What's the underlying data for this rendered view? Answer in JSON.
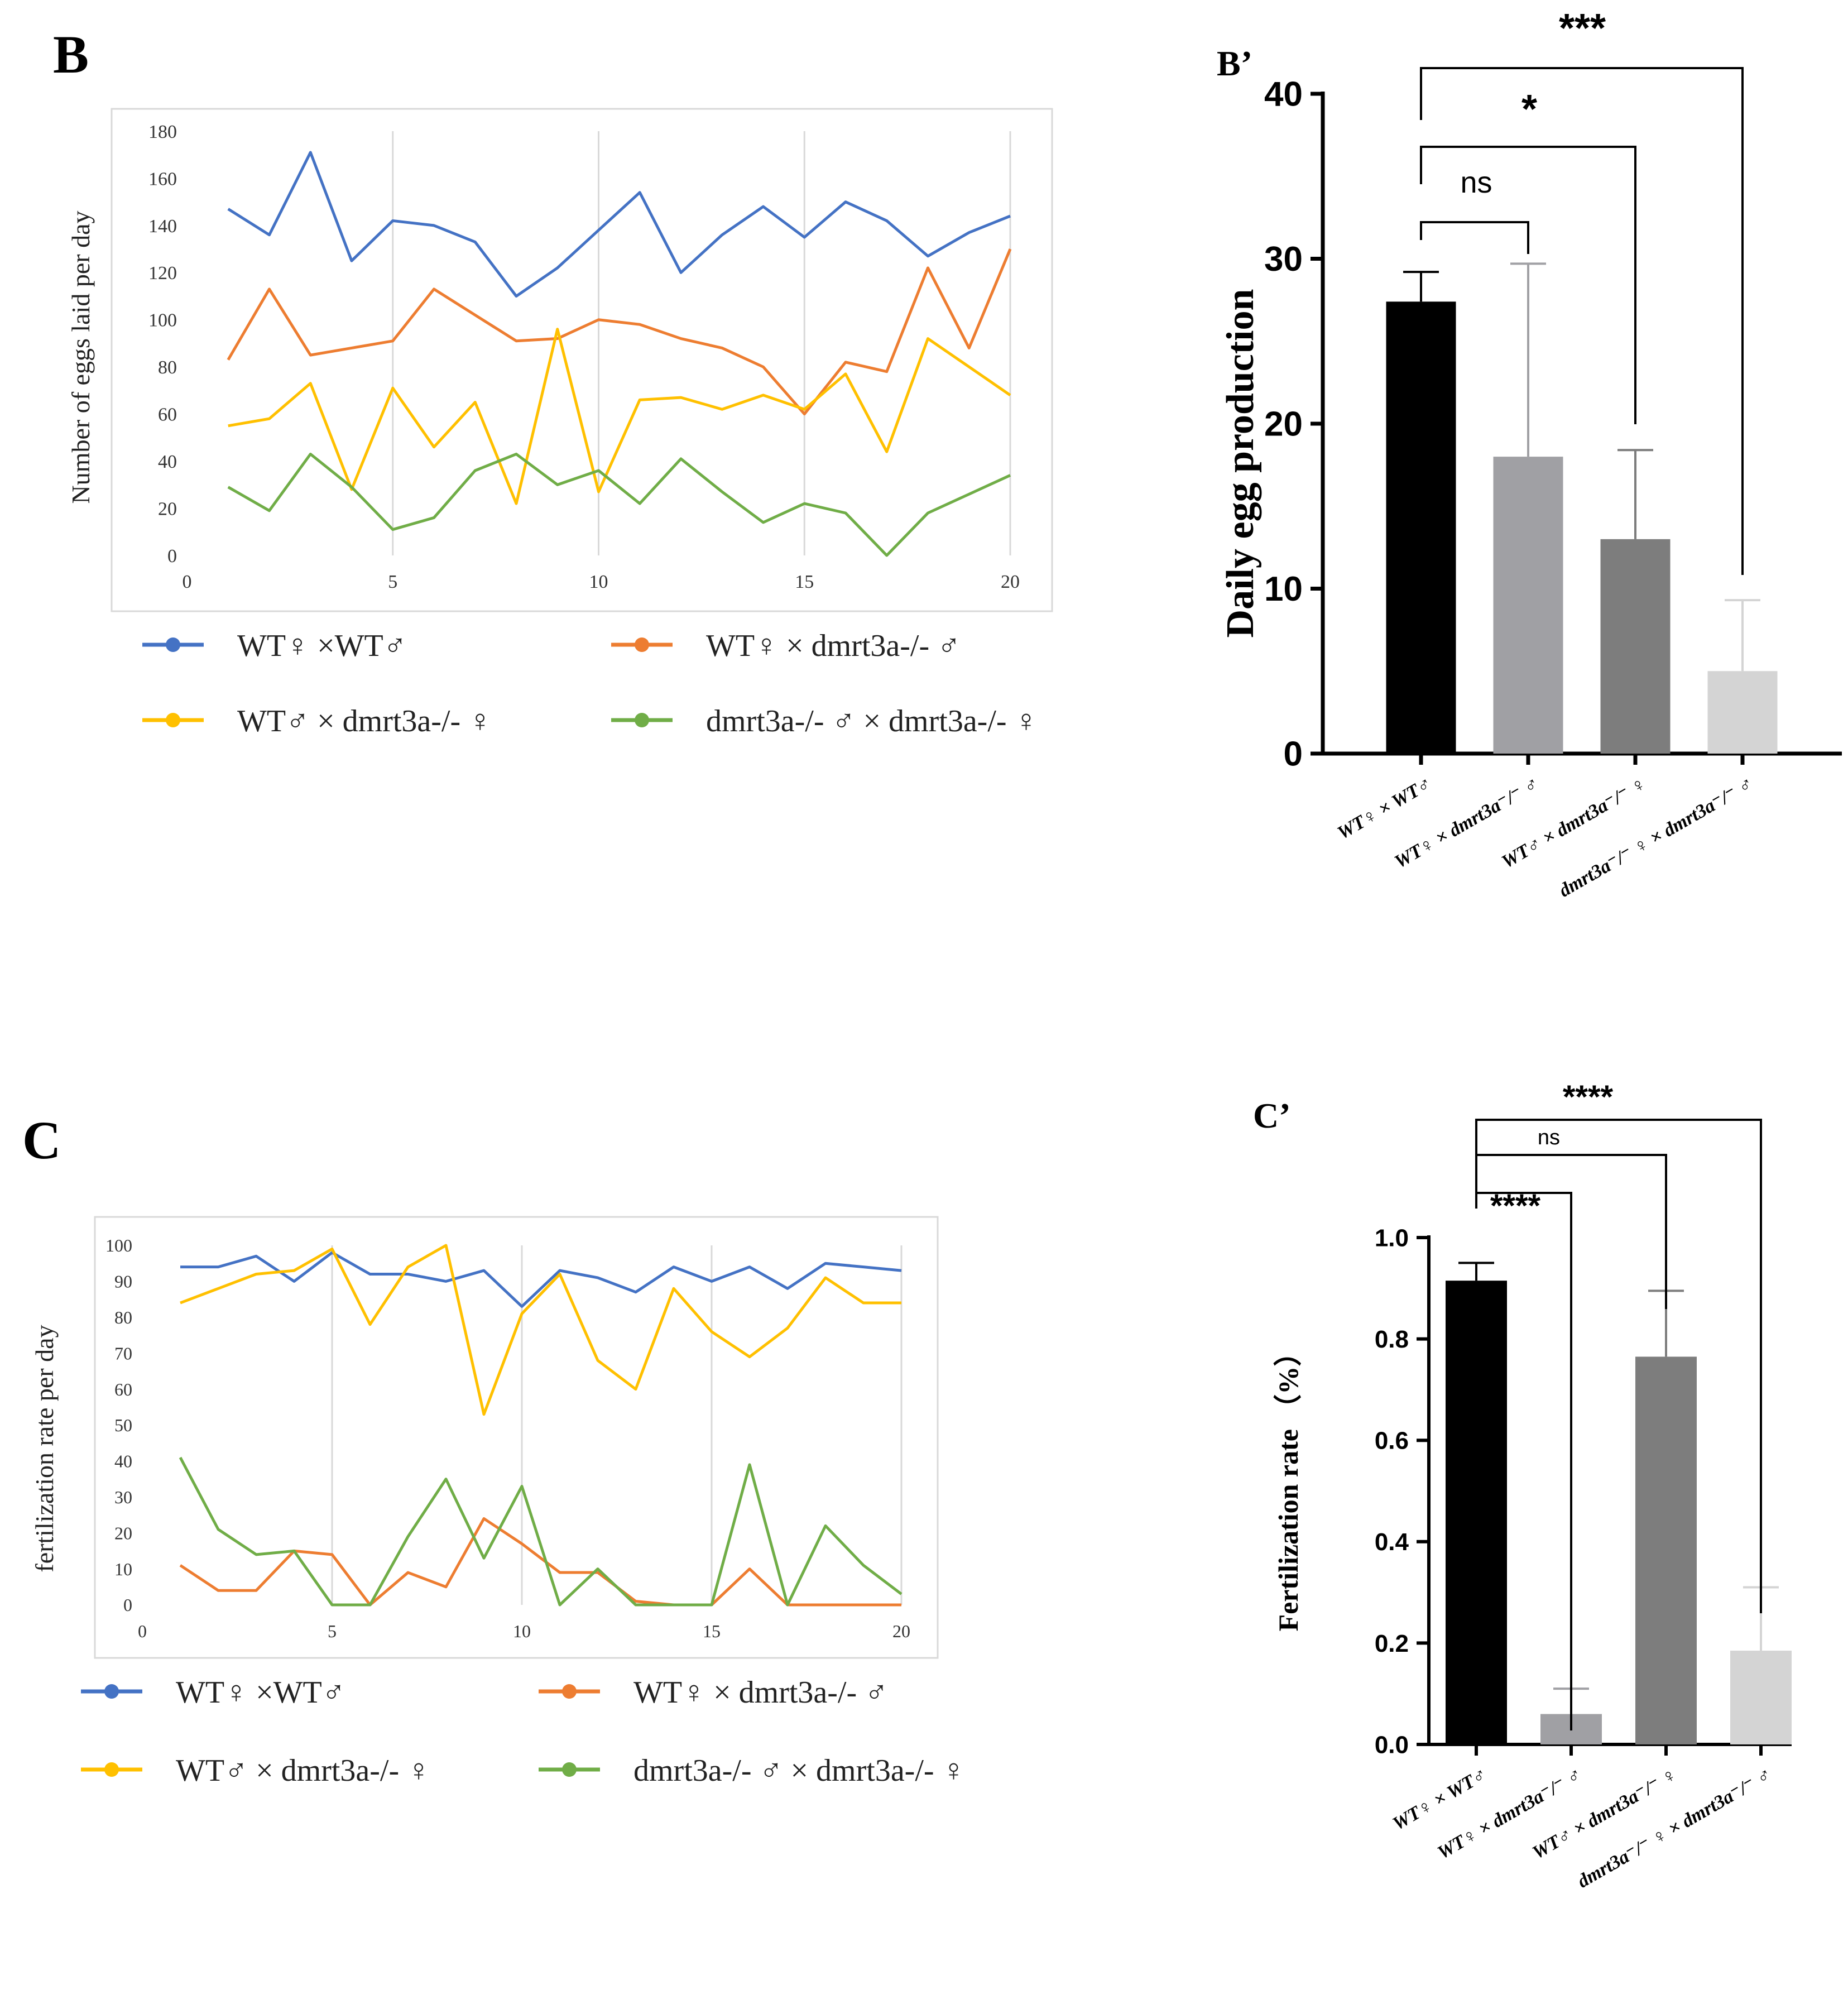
{
  "chart_data": [
    {
      "panel": "B",
      "type": "line",
      "ylabel": "Number of eggs laid per day",
      "xlabel": "",
      "xlim": [
        0,
        20
      ],
      "ylim": [
        0,
        180
      ],
      "xticks": [
        0,
        5,
        10,
        15,
        20
      ],
      "yticks": [
        0,
        20,
        40,
        60,
        80,
        100,
        120,
        140,
        160,
        180
      ],
      "x": [
        1,
        2,
        3,
        4,
        5,
        6,
        7,
        8,
        9,
        10,
        11,
        12,
        13,
        14,
        15,
        16,
        17,
        18,
        19,
        20
      ],
      "series": [
        {
          "name": "WT♀ ×WT♂",
          "color": "#4472C4",
          "values": [
            147,
            136,
            171,
            125,
            142,
            140,
            133,
            110,
            122,
            138,
            154,
            120,
            136,
            148,
            135,
            150,
            142,
            127,
            137,
            144
          ]
        },
        {
          "name": "WT♀ × dmrt3a-/- ♂",
          "color": "#ED7D31",
          "values": [
            83,
            113,
            85,
            88,
            91,
            113,
            102,
            91,
            92,
            100,
            98,
            92,
            88,
            80,
            60,
            82,
            78,
            122,
            88,
            130
          ]
        },
        {
          "name": "WT♂ × dmrt3a-/- ♀",
          "color": "#FFC000",
          "values": [
            55,
            58,
            73,
            28,
            71,
            46,
            65,
            22,
            96,
            27,
            66,
            67,
            62,
            68,
            62,
            77,
            44,
            92,
            80,
            68
          ]
        },
        {
          "name": "dmrt3a-/- ♂ × dmrt3a-/- ♀",
          "color": "#70AD47",
          "values": [
            29,
            19,
            43,
            29,
            11,
            16,
            36,
            43,
            30,
            36,
            22,
            41,
            27,
            14,
            22,
            18,
            0,
            18,
            26,
            34
          ]
        }
      ]
    },
    {
      "panel": "B’",
      "type": "bar",
      "ylabel": "Daily egg production",
      "ylim": [
        0,
        40
      ],
      "yticks": [
        0,
        10,
        20,
        30,
        40
      ],
      "categories": [
        "WT♀ × WT♂",
        "WT♀ × dmrt3a⁻/⁻ ♂",
        "WT♂ × dmrt3a⁻/⁻ ♀",
        "dmrt3a⁻/⁻ ♀ × dmrt3a⁻/⁻ ♂"
      ],
      "values": [
        27.4,
        18.0,
        13.0,
        5.0
      ],
      "errors": [
        1.8,
        11.7,
        5.4,
        4.3
      ],
      "colors": [
        "#000000",
        "#a0a0a4",
        "#7d7d7d",
        "#d4d4d4"
      ],
      "significance": [
        {
          "label": "ns",
          "from": 0,
          "to": 1
        },
        {
          "label": "*",
          "from": 0,
          "to": 2
        },
        {
          "label": "***",
          "from": 0,
          "to": 3
        }
      ]
    },
    {
      "panel": "C",
      "type": "line",
      "ylabel": "fertilization rate per day",
      "xlabel": "",
      "xlim": [
        0,
        20
      ],
      "ylim": [
        0,
        100
      ],
      "xticks": [
        0,
        5,
        10,
        15,
        20
      ],
      "yticks": [
        0,
        10,
        20,
        30,
        40,
        50,
        60,
        70,
        80,
        90,
        100
      ],
      "x": [
        1,
        2,
        3,
        4,
        5,
        6,
        7,
        8,
        9,
        10,
        11,
        12,
        13,
        14,
        15,
        16,
        17,
        18,
        19,
        20
      ],
      "series": [
        {
          "name": "WT♀ ×WT♂",
          "color": "#4472C4",
          "values": [
            94,
            94,
            97,
            90,
            98,
            92,
            92,
            90,
            93,
            83,
            93,
            91,
            87,
            94,
            90,
            94,
            88,
            95,
            94,
            93
          ]
        },
        {
          "name": "WT♀ × dmrt3a-/- ♂",
          "color": "#ED7D31",
          "values": [
            11,
            4,
            4,
            15,
            14,
            0,
            9,
            5,
            24,
            17,
            9,
            9,
            1,
            0,
            0,
            10,
            0,
            0,
            0,
            0
          ]
        },
        {
          "name": "WT♂ × dmrt3a-/- ♀",
          "color": "#FFC000",
          "values": [
            84,
            88,
            92,
            93,
            99,
            78,
            94,
            100,
            53,
            81,
            92,
            68,
            60,
            88,
            76,
            69,
            77,
            91,
            84,
            84
          ]
        },
        {
          "name": "dmrt3a-/- ♂ × dmrt3a-/- ♀",
          "color": "#70AD47",
          "values": [
            41,
            21,
            14,
            15,
            0,
            0,
            19,
            35,
            13,
            33,
            0,
            10,
            0,
            0,
            0,
            39,
            0,
            22,
            11,
            3
          ]
        }
      ]
    },
    {
      "panel": "C’",
      "type": "bar",
      "ylabel": "Fertilization rate （%）",
      "ylim": [
        0,
        1.0
      ],
      "yticks": [
        "0.0",
        "0.2",
        "0.4",
        "0.6",
        "0.8",
        "1.0"
      ],
      "categories": [
        "WT♀ × WT♂",
        "WT♀ × dmrt3a⁻/⁻ ♂",
        "WT♂ × dmrt3a⁻/⁻ ♀",
        "dmrt3a⁻/⁻ ♀ × dmrt3a⁻/⁻ ♂"
      ],
      "values": [
        0.915,
        0.06,
        0.765,
        0.185
      ],
      "errors": [
        0.035,
        0.05,
        0.13,
        0.125
      ],
      "colors": [
        "#000000",
        "#a0a0a4",
        "#7d7d7d",
        "#d4d4d4"
      ],
      "significance": [
        {
          "label": "****",
          "from": 0,
          "to": 1
        },
        {
          "label": "ns",
          "from": 0,
          "to": 2
        },
        {
          "label": "****",
          "from": 0,
          "to": 3
        }
      ]
    }
  ]
}
